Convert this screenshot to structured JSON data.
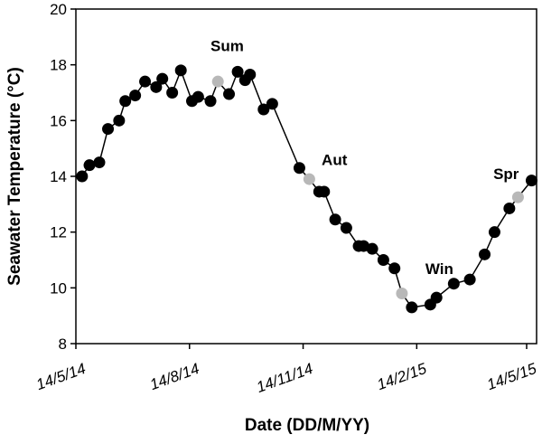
{
  "chart_data": {
    "type": "line",
    "title": "",
    "xlabel": "Date (DD/M/YY)",
    "ylabel": "Seawater Temperature (°C)",
    "x_units": "days since 14/5/14",
    "xlim": [
      0,
      369
    ],
    "ylim": [
      8,
      20
    ],
    "yticks": [
      8,
      10,
      12,
      14,
      16,
      18,
      20
    ],
    "xticks": [
      {
        "value": 0,
        "label": "14/5/14"
      },
      {
        "value": 92,
        "label": "14/8/14"
      },
      {
        "value": 184,
        "label": "14/11/14"
      },
      {
        "value": 276,
        "label": "14/2/15"
      },
      {
        "value": 365,
        "label": "14/5/15"
      }
    ],
    "grid": false,
    "colors": {
      "regular": "#000000",
      "seasonal_sample": "#b8b8b8"
    },
    "points": [
      {
        "x": 5,
        "y": 14.0
      },
      {
        "x": 11,
        "y": 14.4
      },
      {
        "x": 19,
        "y": 14.5
      },
      {
        "x": 26,
        "y": 15.7
      },
      {
        "x": 35,
        "y": 16.0
      },
      {
        "x": 40,
        "y": 16.7
      },
      {
        "x": 48,
        "y": 16.9
      },
      {
        "x": 56,
        "y": 17.4
      },
      {
        "x": 65,
        "y": 17.2
      },
      {
        "x": 70,
        "y": 17.5
      },
      {
        "x": 78,
        "y": 17.0
      },
      {
        "x": 85,
        "y": 17.8
      },
      {
        "x": 94,
        "y": 16.7
      },
      {
        "x": 99,
        "y": 16.85
      },
      {
        "x": 109,
        "y": 16.7
      },
      {
        "x": 115,
        "y": 17.4,
        "season": true
      },
      {
        "x": 124,
        "y": 16.95
      },
      {
        "x": 131,
        "y": 17.75
      },
      {
        "x": 137,
        "y": 17.45
      },
      {
        "x": 141,
        "y": 17.65
      },
      {
        "x": 152,
        "y": 16.4
      },
      {
        "x": 159,
        "y": 16.6
      },
      {
        "x": 181,
        "y": 14.3
      },
      {
        "x": 189,
        "y": 13.9,
        "season": true
      },
      {
        "x": 197,
        "y": 13.45
      },
      {
        "x": 201,
        "y": 13.45
      },
      {
        "x": 210,
        "y": 12.45
      },
      {
        "x": 219,
        "y": 12.15
      },
      {
        "x": 229,
        "y": 11.5
      },
      {
        "x": 233,
        "y": 11.5
      },
      {
        "x": 240,
        "y": 11.4
      },
      {
        "x": 249,
        "y": 11.0
      },
      {
        "x": 258,
        "y": 10.7
      },
      {
        "x": 264,
        "y": 9.8,
        "season": true
      },
      {
        "x": 272,
        "y": 9.3
      },
      {
        "x": 287,
        "y": 9.4
      },
      {
        "x": 292,
        "y": 9.65
      },
      {
        "x": 306,
        "y": 10.15
      },
      {
        "x": 319,
        "y": 10.3
      },
      {
        "x": 331,
        "y": 11.2
      },
      {
        "x": 339,
        "y": 12.0
      },
      {
        "x": 351,
        "y": 12.85
      },
      {
        "x": 358,
        "y": 13.25,
        "season": true
      },
      {
        "x": 369,
        "y": 13.85
      }
    ],
    "annotations": [
      {
        "text": "Sum",
        "x": 109,
        "y": 18.5
      },
      {
        "text": "Aut",
        "x": 199,
        "y": 14.4
      },
      {
        "text": "Win",
        "x": 283,
        "y": 10.5
      },
      {
        "text": "Spr",
        "x": 338,
        "y": 13.9
      }
    ]
  }
}
